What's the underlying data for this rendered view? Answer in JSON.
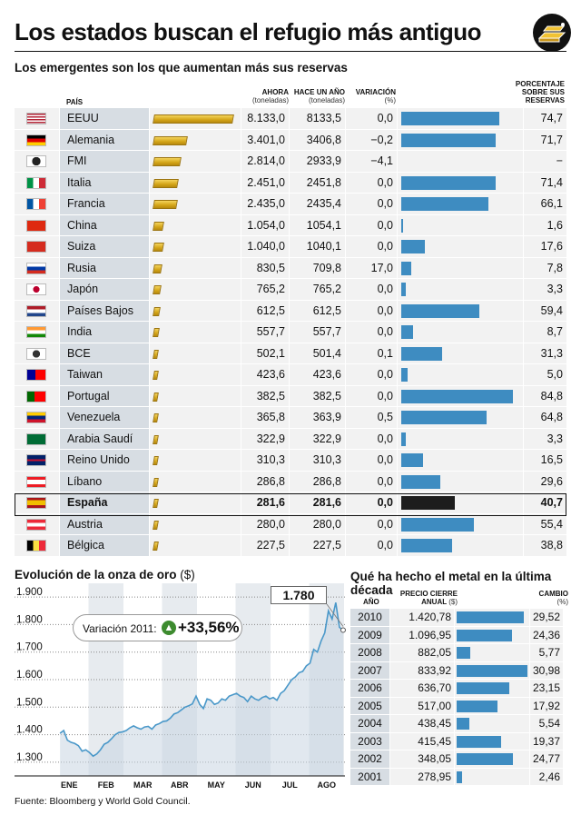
{
  "title": "Los estados buscan el refugio más antiguo",
  "subtitle": "Los emergentes son los que aumentan más sus reservas",
  "headers": {
    "country": "PAÍS",
    "now": "AHORA",
    "now_unit": "(toneladas)",
    "prev": "HACE UN AÑO",
    "prev_unit": "(toneladas)",
    "var": "VARIACIÓN",
    "var_unit": "(%)",
    "pct_l1": "PORCENTAJE",
    "pct_l2": "SOBRE SUS",
    "pct_l3": "RESERVAS"
  },
  "colors": {
    "bar_blue": "#3e8cc1",
    "highlight_bar": "#1d1d1d",
    "gold": "#d3a417",
    "name_bg": "#d7dde3",
    "cell_bg": "#f2f2f2",
    "line": "#4a98c9"
  },
  "chart_data": [
    {
      "type": "table",
      "columns": [
        "PAÍS",
        "AHORA (toneladas)",
        "HACE UN AÑO (toneladas)",
        "VARIACIÓN (%)",
        "PORCENTAJE SOBRE SUS RESERVAS"
      ],
      "rows": [
        {
          "country": "EEUU",
          "flag": "us-flag-icon",
          "now": "8.133,0",
          "now_value": 8133.0,
          "prev": "8133,5",
          "var": "0,0",
          "pct": "74,7",
          "pct_value": 74.7
        },
        {
          "country": "Alemania",
          "flag": "germany-flag-icon",
          "now": "3.401,0",
          "now_value": 3401.0,
          "prev": "3406,8",
          "var": "−0,2",
          "pct": "71,7",
          "pct_value": 71.7
        },
        {
          "country": "FMI",
          "flag": "imf-flag-icon",
          "now": "2.814,0",
          "now_value": 2814.0,
          "prev": "2933,9",
          "var": "−4,1",
          "pct": "−",
          "pct_value": null
        },
        {
          "country": "Italia",
          "flag": "italy-flag-icon",
          "now": "2.451,0",
          "now_value": 2451.0,
          "prev": "2451,8",
          "var": "0,0",
          "pct": "71,4",
          "pct_value": 71.4
        },
        {
          "country": "Francia",
          "flag": "france-flag-icon",
          "now": "2.435,0",
          "now_value": 2435.0,
          "prev": "2435,4",
          "var": "0,0",
          "pct": "66,1",
          "pct_value": 66.1
        },
        {
          "country": "China",
          "flag": "china-flag-icon",
          "now": "1.054,0",
          "now_value": 1054.0,
          "prev": "1054,1",
          "var": "0,0",
          "pct": "1,6",
          "pct_value": 1.6
        },
        {
          "country": "Suiza",
          "flag": "switzerland-flag-icon",
          "now": "1.040,0",
          "now_value": 1040.0,
          "prev": "1040,1",
          "var": "0,0",
          "pct": "17,6",
          "pct_value": 17.6
        },
        {
          "country": "Rusia",
          "flag": "russia-flag-icon",
          "now": "830,5",
          "now_value": 830.5,
          "prev": "709,8",
          "var": "17,0",
          "pct": "7,8",
          "pct_value": 7.8
        },
        {
          "country": "Japón",
          "flag": "japan-flag-icon",
          "now": "765,2",
          "now_value": 765.2,
          "prev": "765,2",
          "var": "0,0",
          "pct": "3,3",
          "pct_value": 3.3
        },
        {
          "country": "Países Bajos",
          "flag": "netherlands-flag-icon",
          "now": "612,5",
          "now_value": 612.5,
          "prev": "612,5",
          "var": "0,0",
          "pct": "59,4",
          "pct_value": 59.4
        },
        {
          "country": "India",
          "flag": "india-flag-icon",
          "now": "557,7",
          "now_value": 557.7,
          "prev": "557,7",
          "var": "0,0",
          "pct": "8,7",
          "pct_value": 8.7
        },
        {
          "country": "BCE",
          "flag": "ecb-flag-icon",
          "now": "502,1",
          "now_value": 502.1,
          "prev": "501,4",
          "var": "0,1",
          "pct": "31,3",
          "pct_value": 31.3
        },
        {
          "country": "Taiwan",
          "flag": "taiwan-flag-icon",
          "now": "423,6",
          "now_value": 423.6,
          "prev": "423,6",
          "var": "0,0",
          "pct": "5,0",
          "pct_value": 5.0
        },
        {
          "country": "Portugal",
          "flag": "portugal-flag-icon",
          "now": "382,5",
          "now_value": 382.5,
          "prev": "382,5",
          "var": "0,0",
          "pct": "84,8",
          "pct_value": 84.8
        },
        {
          "country": "Venezuela",
          "flag": "venezuela-flag-icon",
          "now": "365,8",
          "now_value": 365.8,
          "prev": "363,9",
          "var": "0,5",
          "pct": "64,8",
          "pct_value": 64.8
        },
        {
          "country": "Arabia Saudí",
          "flag": "saudi-arabia-flag-icon",
          "now": "322,9",
          "now_value": 322.9,
          "prev": "322,9",
          "var": "0,0",
          "pct": "3,3",
          "pct_value": 3.3
        },
        {
          "country": "Reino Unido",
          "flag": "uk-flag-icon",
          "now": "310,3",
          "now_value": 310.3,
          "prev": "310,3",
          "var": "0,0",
          "pct": "16,5",
          "pct_value": 16.5
        },
        {
          "country": "Líbano",
          "flag": "lebanon-flag-icon",
          "now": "286,8",
          "now_value": 286.8,
          "prev": "286,8",
          "var": "0,0",
          "pct": "29,6",
          "pct_value": 29.6
        },
        {
          "country": "España",
          "flag": "spain-flag-icon",
          "now": "281,6",
          "now_value": 281.6,
          "prev": "281,6",
          "var": "0,0",
          "pct": "40,7",
          "pct_value": 40.7,
          "highlight": true
        },
        {
          "country": "Austria",
          "flag": "austria-flag-icon",
          "now": "280,0",
          "now_value": 280.0,
          "prev": "280,0",
          "var": "0,0",
          "pct": "55,4",
          "pct_value": 55.4
        },
        {
          "country": "Bélgica",
          "flag": "belgium-flag-icon",
          "now": "227,5",
          "now_value": 227.5,
          "prev": "227,5",
          "var": "0,0",
          "pct": "38,8",
          "pct_value": 38.8
        }
      ]
    },
    {
      "type": "line",
      "title": "Evolución de la onza de oro",
      "unit": "($)",
      "ylim": [
        1250,
        1950
      ],
      "yticks": [
        "1.900",
        "1.800",
        "1.700",
        "1.600",
        "1.500",
        "1.400",
        "1.300"
      ],
      "ytick_values": [
        1900,
        1800,
        1700,
        1600,
        1500,
        1400,
        1300
      ],
      "xticks": [
        "ENE",
        "FEB",
        "MAR",
        "ABR",
        "MAY",
        "JUN",
        "JUL",
        "AGO"
      ],
      "grid": true,
      "series": [
        {
          "x": [
            0.0,
            0.1,
            0.2,
            0.3,
            0.4,
            0.5,
            0.6,
            0.7,
            0.8,
            0.9,
            1.0,
            1.1,
            1.2,
            1.3,
            1.4,
            1.5,
            1.6,
            1.7,
            1.8,
            1.9,
            2.0,
            2.1,
            2.2,
            2.3,
            2.4,
            2.5,
            2.6,
            2.7,
            2.8,
            2.9,
            3.0,
            3.1,
            3.2,
            3.3,
            3.4,
            3.5,
            3.6,
            3.7,
            3.8,
            3.9,
            4.0,
            4.1,
            4.2,
            4.3,
            4.4,
            4.5,
            4.6,
            4.7,
            4.8,
            4.9,
            5.0,
            5.1,
            5.2,
            5.3,
            5.4,
            5.5,
            5.6,
            5.7,
            5.8,
            5.9,
            6.0,
            6.1,
            6.2,
            6.3,
            6.4,
            6.5,
            6.6,
            6.7,
            6.8,
            6.9,
            7.0,
            7.1,
            7.2,
            7.3,
            7.4,
            7.5,
            7.6,
            7.7
          ],
          "y": [
            1405,
            1415,
            1380,
            1372,
            1368,
            1360,
            1340,
            1345,
            1335,
            1322,
            1330,
            1345,
            1365,
            1372,
            1385,
            1400,
            1408,
            1410,
            1415,
            1425,
            1432,
            1425,
            1420,
            1428,
            1430,
            1420,
            1435,
            1440,
            1448,
            1450,
            1460,
            1475,
            1480,
            1490,
            1500,
            1505,
            1512,
            1540,
            1510,
            1495,
            1530,
            1525,
            1510,
            1515,
            1530,
            1525,
            1540,
            1545,
            1550,
            1540,
            1535,
            1520,
            1540,
            1530,
            1525,
            1535,
            1540,
            1530,
            1535,
            1525,
            1550,
            1560,
            1580,
            1600,
            1610,
            1625,
            1630,
            1650,
            1660,
            1710,
            1700,
            1740,
            1770,
            1850,
            1820,
            1880,
            1790,
            1780
          ]
        }
      ],
      "annotation_value": "1.780",
      "variation_label": "Variación 2011:",
      "variation_value": "+33,56%"
    },
    {
      "type": "table",
      "title": "Qué ha hecho el metal en la última década",
      "columns": [
        "AÑO",
        "PRECIO CIERRE ANUAL ($)",
        "CAMBIO (%)"
      ],
      "rows": [
        {
          "year": "2010",
          "price": "1.420,78",
          "change": "29,52",
          "change_value": 29.52
        },
        {
          "year": "2009",
          "price": "1.096,95",
          "change": "24,36",
          "change_value": 24.36
        },
        {
          "year": "2008",
          "price": "882,05",
          "change": "5,77",
          "change_value": 5.77
        },
        {
          "year": "2007",
          "price": "833,92",
          "change": "30,98",
          "change_value": 30.98
        },
        {
          "year": "2006",
          "price": "636,70",
          "change": "23,15",
          "change_value": 23.15
        },
        {
          "year": "2005",
          "price": "517,00",
          "change": "17,92",
          "change_value": 17.92
        },
        {
          "year": "2004",
          "price": "438,45",
          "change": "5,54",
          "change_value": 5.54
        },
        {
          "year": "2003",
          "price": "415,45",
          "change": "19,37",
          "change_value": 19.37
        },
        {
          "year": "2002",
          "price": "348,05",
          "change": "24,77",
          "change_value": 24.77
        },
        {
          "year": "2001",
          "price": "278,95",
          "change": "2,46",
          "change_value": 2.46
        }
      ]
    }
  ],
  "decade_headers": {
    "year": "AÑO",
    "price_l1": "PRECIO CIERRE",
    "price_l2": "ANUAL",
    "price_unit": "($)",
    "change": "CAMBIO",
    "change_unit": "(%)"
  },
  "source": "Fuente: Bloomberg y World Gold Council."
}
